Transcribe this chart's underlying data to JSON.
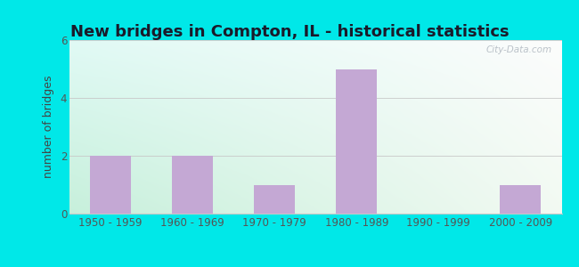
{
  "title": "New bridges in Compton, IL - historical statistics",
  "categories": [
    "1950 - 1959",
    "1960 - 1969",
    "1970 - 1979",
    "1980 - 1989",
    "1990 - 1999",
    "2000 - 2009"
  ],
  "values": [
    2,
    2,
    1,
    5,
    0,
    1
  ],
  "bar_color": "#c4a8d4",
  "ylabel": "number of bridges",
  "ylim": [
    0,
    6
  ],
  "yticks": [
    0,
    2,
    4,
    6
  ],
  "outer_bg": "#00e8e8",
  "title_color": "#1a1a2a",
  "axis_label_color": "#444444",
  "tick_color": "#555555",
  "grid_color": "#c8c8c8",
  "watermark_text": "City-Data.com",
  "title_fontsize": 13,
  "ylabel_fontsize": 9,
  "tick_fontsize": 8.5,
  "bar_width": 0.5
}
